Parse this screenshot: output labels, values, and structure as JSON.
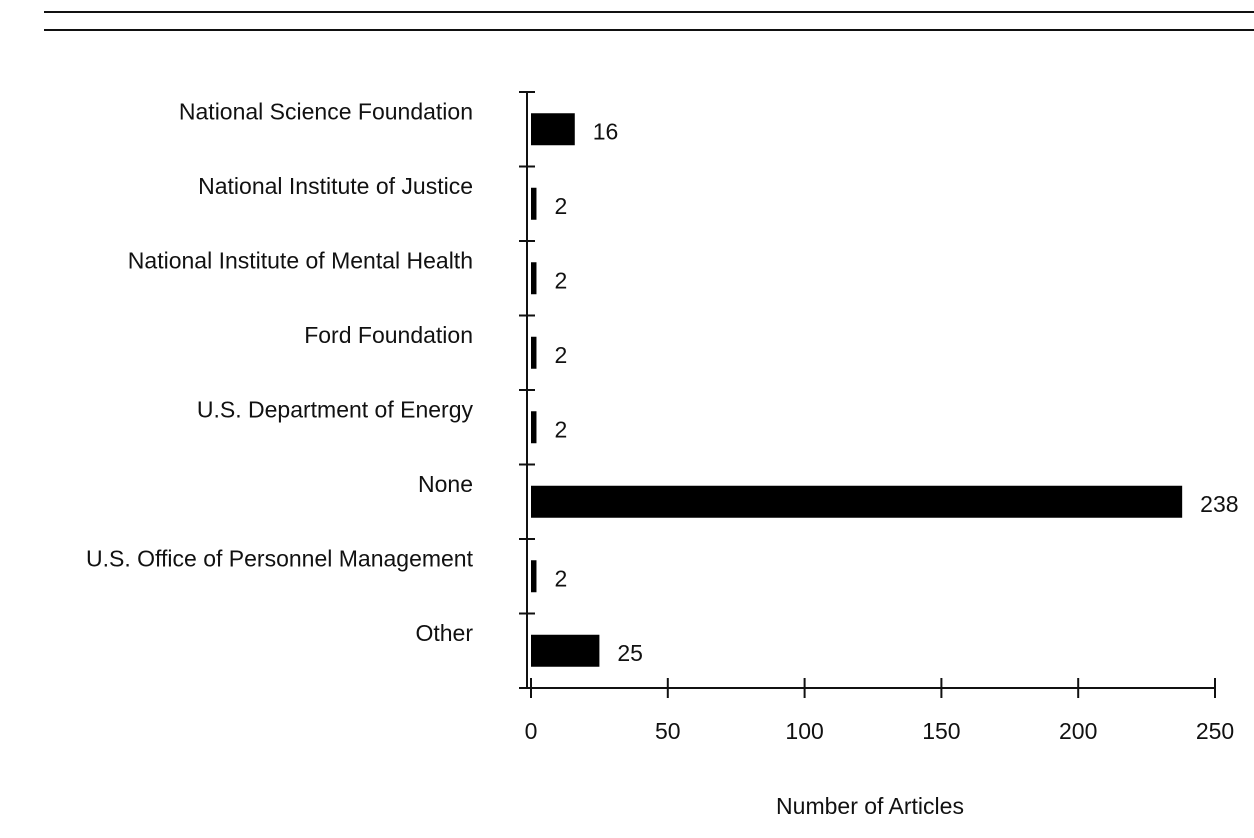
{
  "chart_data": {
    "type": "barh",
    "xlabel": "Number of Articles",
    "categories": [
      "National Science Foundation",
      "National Institute of Justice",
      "National Institute of Mental Health",
      "Ford Foundation",
      "U.S. Department of Energy",
      "None",
      "U.S. Office of Personnel Management",
      "Other"
    ],
    "values": [
      16,
      2,
      2,
      2,
      2,
      238,
      2,
      25
    ],
    "color": "#000000",
    "xlim": [
      0,
      250
    ],
    "xticks": [
      0,
      50,
      100,
      150,
      200,
      250
    ]
  }
}
